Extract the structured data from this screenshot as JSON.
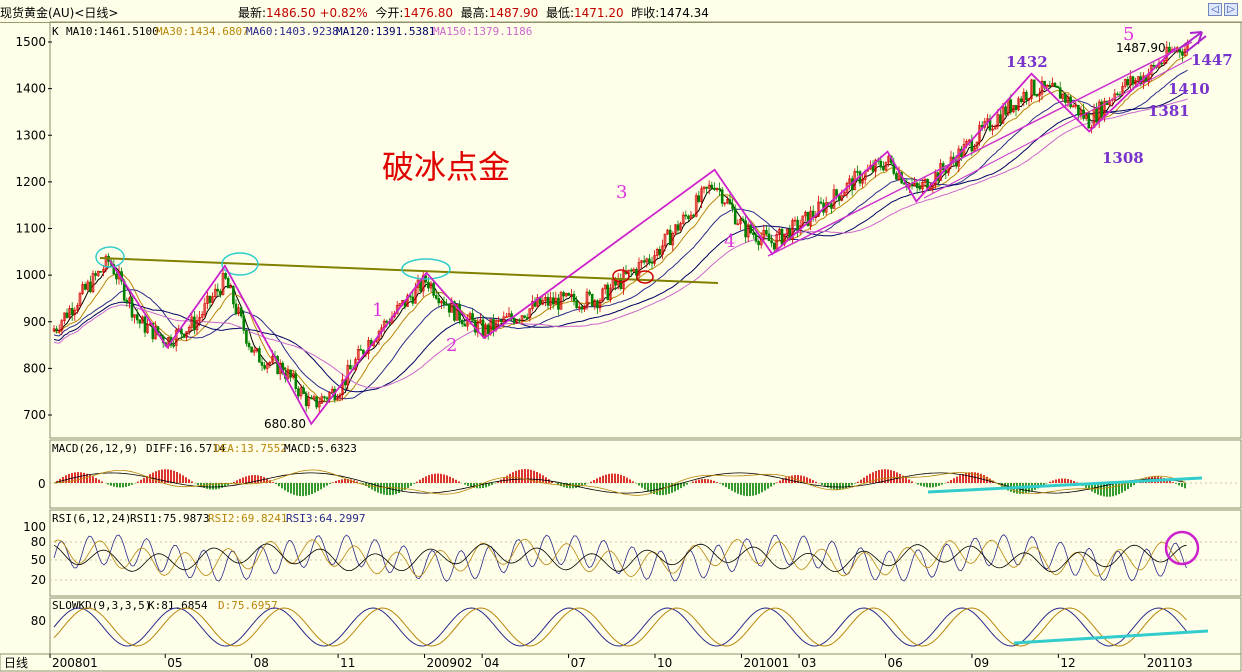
{
  "header": {
    "symbol": "现货黄金(AU)<日线>",
    "latest_label": "最新:",
    "latest": "1486.50",
    "change": "+0.82%",
    "open_label": "今开:",
    "open": "1476.80",
    "high_label": "最高:",
    "high": "1487.90",
    "low_label": "最低:",
    "low": "1471.20",
    "prev_label": "昨收:",
    "prev": "1474.34",
    "btn_left": "◁",
    "btn_right": "▷"
  },
  "ma_legend": {
    "k": "K",
    "ma10": "MA10:1461.5100",
    "ma30": "MA30:1434.6807",
    "ma60": "MA60:1403.9238",
    "ma120": "MA120:1391.5381",
    "ma150": "MA150:1379.1186",
    "colors": {
      "ma10": "#000000",
      "ma30": "#b8860b",
      "ma60": "#2a2a8c",
      "ma120": "#000066",
      "ma150": "#cc66cc"
    }
  },
  "annotations": {
    "title": "破冰点金",
    "wave1": "1",
    "wave2": "2",
    "wave3": "3",
    "wave4": "4",
    "wave5": "5",
    "low_price": "680.80",
    "high_price": "1487.90",
    "p1432": "1432",
    "p1447": "1447",
    "p1410": "1410",
    "p1381": "1381",
    "p1308": "1308"
  },
  "x_axis": {
    "label": "日线",
    "ticks": [
      "200801",
      "05",
      "08",
      "11",
      "200902",
      "04",
      "07",
      "10",
      "201001",
      "03",
      "06",
      "09",
      "12",
      "201103"
    ]
  },
  "indicators": {
    "macd": {
      "title": "MACD(26,12,9)",
      "diff": "DIFF:16.5714",
      "dea": "DEA:13.7552",
      "macd": "MACD:5.6323",
      "zero": "0"
    },
    "rsi": {
      "title": "RSI(6,12,24)",
      "rsi1": "RSI1:75.9873",
      "rsi2": "RSI2:69.8241",
      "rsi3": "RSI3:64.2997",
      "ticks": [
        "100",
        "80",
        "50",
        "20"
      ]
    },
    "kd": {
      "title": "SLOWKD(9,3,3,5)",
      "k": "K:81.6854",
      "d": "D:75.6957",
      "tick": "80"
    }
  },
  "chart_data": {
    "type": "line",
    "title": "破冰点金",
    "ylim": [
      650,
      1530
    ],
    "yticks": [
      700,
      800,
      900,
      1000,
      1100,
      1200,
      1300,
      1400,
      1500
    ],
    "wave_path": [
      {
        "x": "2008-03",
        "y": 1032
      },
      {
        "x": "2008-05",
        "y": 845
      },
      {
        "x": "2008-07",
        "y": 1020
      },
      {
        "x": "2008-10",
        "y": 681
      },
      {
        "x": "2009-02",
        "y": 1005
      },
      {
        "x": "2009-04",
        "y": 865
      },
      {
        "x": "2009-12",
        "y": 1226
      },
      {
        "x": "2010-02",
        "y": 1045
      },
      {
        "x": "2010-06",
        "y": 1265
      },
      {
        "x": "2010-07",
        "y": 1158
      },
      {
        "x": "2010-11",
        "y": 1432
      },
      {
        "x": "2011-01",
        "y": 1308
      },
      {
        "x": "2011-04",
        "y": 1487.9
      }
    ],
    "price": [
      {
        "x": "2008-01",
        "y": 880
      },
      {
        "x": "2008-03",
        "y": 1032
      },
      {
        "x": "2008-04",
        "y": 900
      },
      {
        "x": "2008-05",
        "y": 860
      },
      {
        "x": "2008-06",
        "y": 900
      },
      {
        "x": "2008-07",
        "y": 990
      },
      {
        "x": "2008-08",
        "y": 830
      },
      {
        "x": "2008-09",
        "y": 800
      },
      {
        "x": "2008-10",
        "y": 720
      },
      {
        "x": "2008-11",
        "y": 760
      },
      {
        "x": "2008-12",
        "y": 860
      },
      {
        "x": "2009-02",
        "y": 990
      },
      {
        "x": "2009-03",
        "y": 920
      },
      {
        "x": "2009-04",
        "y": 880
      },
      {
        "x": "2009-06",
        "y": 940
      },
      {
        "x": "2009-08",
        "y": 950
      },
      {
        "x": "2009-09",
        "y": 1000
      },
      {
        "x": "2009-10",
        "y": 1050
      },
      {
        "x": "2009-12",
        "y": 1200
      },
      {
        "x": "2010-01",
        "y": 1100
      },
      {
        "x": "2010-02",
        "y": 1070
      },
      {
        "x": "2010-03",
        "y": 1110
      },
      {
        "x": "2010-05",
        "y": 1210
      },
      {
        "x": "2010-06",
        "y": 1245
      },
      {
        "x": "2010-07",
        "y": 1180
      },
      {
        "x": "2010-08",
        "y": 1230
      },
      {
        "x": "2010-09",
        "y": 1290
      },
      {
        "x": "2010-10",
        "y": 1350
      },
      {
        "x": "2010-11",
        "y": 1400
      },
      {
        "x": "2010-12",
        "y": 1390
      },
      {
        "x": "2011-01",
        "y": 1330
      },
      {
        "x": "2011-02",
        "y": 1400
      },
      {
        "x": "2011-03",
        "y": 1430
      },
      {
        "x": "2011-04",
        "y": 1486.5
      }
    ]
  }
}
